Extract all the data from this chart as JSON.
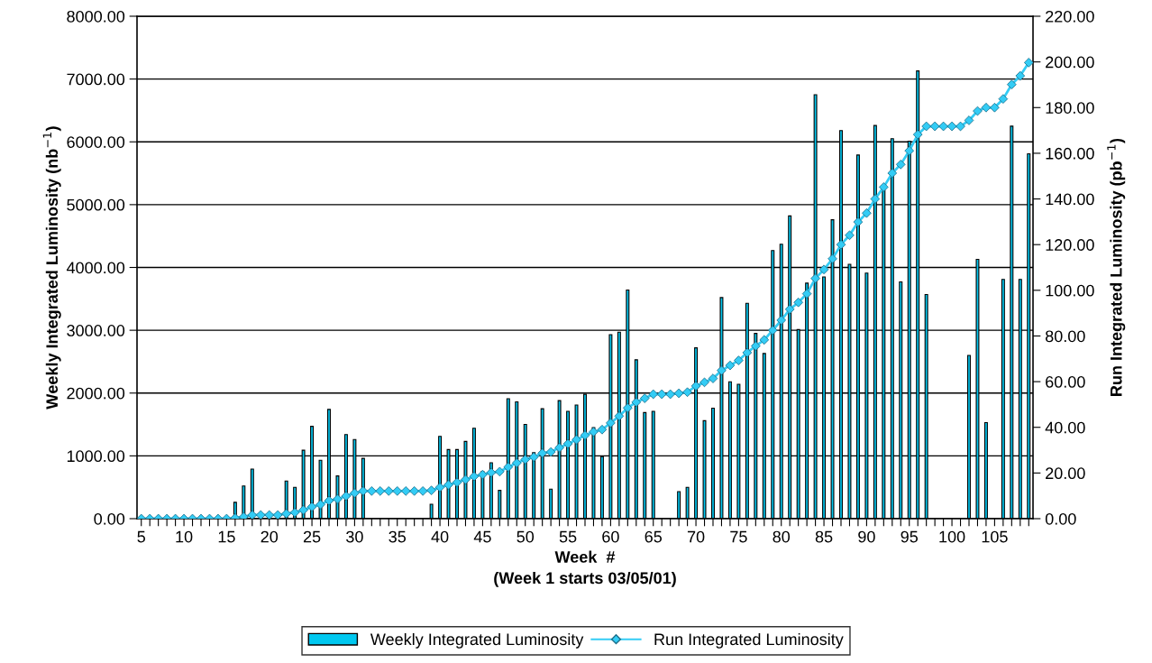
{
  "chart_data": {
    "type": "bar",
    "xlabel": "Week  #\n(Week 1 starts 03/05/01)",
    "ylabel": "Weekly Integrated Luminosity (nb$^{−1}$)",
    "y2label": "Run Integrated Luminosity (pb$^{−1}$)",
    "categories": [
      "5",
      null,
      null,
      null,
      null,
      "10",
      null,
      null,
      null,
      null,
      "15",
      null,
      null,
      null,
      null,
      "20",
      null,
      null,
      null,
      null,
      "25",
      null,
      null,
      null,
      null,
      "30",
      null,
      null,
      null,
      null,
      "35",
      null,
      null,
      null,
      null,
      "40",
      null,
      null,
      null,
      null,
      "45",
      null,
      null,
      null,
      null,
      "50",
      null,
      null,
      null,
      null,
      "55",
      null,
      null,
      null,
      null,
      "60",
      null,
      null,
      null,
      null,
      "65",
      null,
      null,
      null,
      null,
      "70",
      null,
      null,
      null,
      null,
      "75",
      null,
      null,
      null,
      null,
      "80",
      null,
      null,
      null,
      null,
      "85",
      null,
      null,
      null,
      null,
      "90",
      null,
      null,
      null,
      null,
      "95",
      null,
      null,
      null,
      null,
      "100",
      null,
      null,
      null,
      null,
      "105",
      null,
      null,
      null,
      null
    ],
    "series": [
      {
        "name": "Weekly Integrated Luminosity",
        "color": "#00c8f0",
        "values": [
          0,
          0,
          0,
          0,
          0,
          0,
          0,
          0,
          0,
          0,
          0,
          260,
          520,
          790,
          0,
          0,
          0,
          600,
          500,
          1090,
          1470,
          930,
          1740,
          680,
          1340,
          1260,
          960,
          0,
          0,
          0,
          0,
          0,
          0,
          0,
          230,
          1310,
          1100,
          1100,
          1230,
          1440,
          750,
          890,
          450,
          1910,
          1860,
          1500,
          1050,
          1750,
          470,
          1880,
          1710,
          1810,
          1980,
          1450,
          990,
          2930,
          2970,
          3640,
          2530,
          1690,
          1710,
          0,
          0,
          430,
          500,
          2720,
          1560,
          1760,
          3520,
          2180,
          2140,
          3430,
          2950,
          2630,
          4270,
          4370,
          4820,
          3010,
          3750,
          6750,
          3850,
          4760,
          6180,
          4050,
          5790,
          3910,
          6260,
          5230,
          6050,
          3770,
          6010,
          7130,
          3570,
          0,
          0,
          0,
          0,
          2600,
          4130,
          1530,
          0,
          3810,
          6250,
          3810,
          5810
        ]
      },
      {
        "name": "Run Integrated Luminosity",
        "type": "line",
        "axis": "y2",
        "color": "#33ccf5",
        "marker": "diamond",
        "line_style": "solid",
        "values": [
          0,
          0,
          0,
          0,
          0,
          0,
          0,
          0,
          0,
          0,
          0,
          0.3,
          0.8,
          1.6,
          1.6,
          1.6,
          1.6,
          2.2,
          2.7,
          3.8,
          5.2,
          6.2,
          7.9,
          8.6,
          9.9,
          11.2,
          12.1,
          12.1,
          12.1,
          12.1,
          12.1,
          12.1,
          12.1,
          12.1,
          12.4,
          13.7,
          14.8,
          15.9,
          17.1,
          18.5,
          19.3,
          20.2,
          20.6,
          22.6,
          24.4,
          25.9,
          27,
          28.7,
          29.2,
          31.1,
          32.8,
          34.6,
          36.5,
          38,
          39,
          41.9,
          44.9,
          48.5,
          51,
          52.7,
          54.5,
          54.5,
          54.5,
          54.9,
          55.4,
          58.1,
          59.7,
          61.4,
          64.9,
          67.1,
          69.3,
          72.7,
          75.6,
          78.3,
          82.5,
          86.9,
          91.7,
          94.7,
          98.5,
          105.2,
          109.1,
          113.8,
          120,
          124.1,
          129.9,
          133.8,
          140,
          145.2,
          151.3,
          155.1,
          161.1,
          168.2,
          171.8,
          171.8,
          171.8,
          171.8,
          171.8,
          174.4,
          178.5,
          180,
          180,
          183.8,
          190.1,
          193.9,
          199.7
        ]
      }
    ],
    "ylim": [
      0,
      8000
    ],
    "yticks": [
      {
        "value": 0,
        "label": "0.00"
      },
      {
        "value": 1000,
        "label": "1000.00"
      },
      {
        "value": 2000,
        "label": "2000.00"
      },
      {
        "value": 3000,
        "label": "3000.00"
      },
      {
        "value": 4000,
        "label": "4000.00"
      },
      {
        "value": 5000,
        "label": "5000.00"
      },
      {
        "value": 6000,
        "label": "6000.00"
      },
      {
        "value": 7000,
        "label": "7000.00"
      },
      {
        "value": 8000,
        "label": "8000.00"
      }
    ],
    "y2lim": [
      0,
      220
    ],
    "y2ticks": [
      {
        "value": 0,
        "label": "0.00"
      },
      {
        "value": 20,
        "label": "20.00"
      },
      {
        "value": 40,
        "label": "40.00"
      },
      {
        "value": 60,
        "label": "60.00"
      },
      {
        "value": 80,
        "label": "80.00"
      },
      {
        "value": 100,
        "label": "100.00"
      },
      {
        "value": 120,
        "label": "120.00"
      },
      {
        "value": 140,
        "label": "140.00"
      },
      {
        "value": 160,
        "label": "160.00"
      },
      {
        "value": 180,
        "label": "180.00"
      },
      {
        "value": 200,
        "label": "200.00"
      },
      {
        "value": 220,
        "label": "220.00"
      }
    ],
    "grid": "y",
    "legend": "bottom"
  }
}
